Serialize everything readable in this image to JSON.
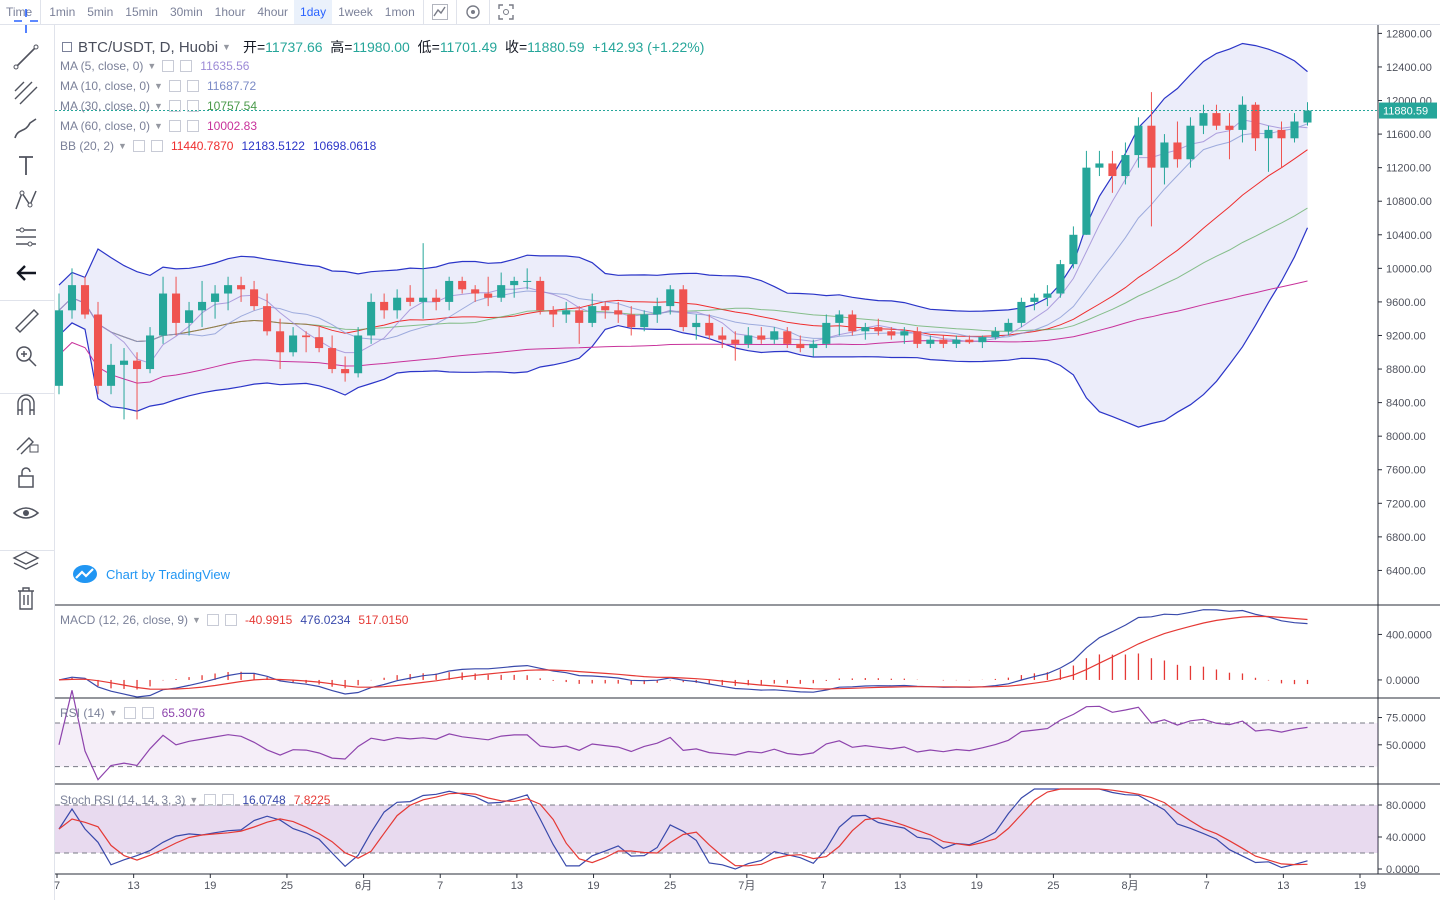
{
  "toolbar": {
    "timeframes": [
      "Time",
      "1min",
      "5min",
      "15min",
      "30min",
      "1hour",
      "4hour",
      "1day",
      "1week",
      "1mon"
    ],
    "active": "1day"
  },
  "title": "BTC/USDT, D, Huobi",
  "ohlc": {
    "open_label": "开",
    "open": "11737.66",
    "high_label": "高",
    "high": "11980.00",
    "low_label": "低",
    "low": "11701.49",
    "close_label": "收",
    "close": "11880.59",
    "change": "+142.93 (+1.22%)"
  },
  "indicators": {
    "ma5": {
      "name": "MA (5, close, 0)",
      "value": "11635.56",
      "color": "#9c8ad6"
    },
    "ma10": {
      "name": "MA (10, close, 0)",
      "value": "11687.72",
      "color": "#8a9ad6"
    },
    "ma30": {
      "name": "MA (30, close, 0)",
      "value": "10757.54",
      "color": "#5aaa5a"
    },
    "ma60": {
      "name": "MA (60, close, 0)",
      "value": "10002.83",
      "color": "#c8329b"
    },
    "bb": {
      "name": "BB (20, 2)",
      "basis": "11440.7870",
      "upper": "12183.5122",
      "lower": "10698.0618",
      "basis_color": "#ef2d2d",
      "band_color": "#2b35c8"
    },
    "macd": {
      "name": "MACD (12, 26, close, 9)",
      "hist": "-40.9915",
      "macd": "476.0234",
      "signal": "517.0150",
      "hist_color": "#e53935",
      "macd_color": "#3949ab",
      "signal_color": "#e53935"
    },
    "rsi": {
      "name": "RSI (14)",
      "value": "65.3076",
      "color": "#8e44ad"
    },
    "stoch": {
      "name": "Stoch RSI (14, 14, 3, 3)",
      "k": "16.0748",
      "d": "7.8225",
      "k_color": "#3949ab",
      "d_color": "#e53935"
    }
  },
  "brand": "Chart by TradingView",
  "last_price": "11880.59",
  "chart_data": {
    "type": "candlestick",
    "price_axis": {
      "min": 6000,
      "max": 12900,
      "ticks": [
        6400,
        6800,
        7200,
        7600,
        8000,
        8400,
        8800,
        9200,
        9600,
        10000,
        10400,
        10800,
        11200,
        11600,
        12000,
        12400,
        12800
      ],
      "tick_labels": [
        "6400.00",
        "6800.00",
        "7200.00",
        "7600.00",
        "8000.00",
        "8400.00",
        "8800.00",
        "9200.00",
        "9600.00",
        "10000.00",
        "10400.00",
        "10800.00",
        "11200.00",
        "11600.00",
        "12000.00",
        "12400.00",
        "12800.00"
      ]
    },
    "x_axis": {
      "labels": [
        "7",
        "13",
        "19",
        "25",
        "6月",
        "7",
        "13",
        "19",
        "25",
        "7月",
        "7",
        "13",
        "19",
        "25",
        "8月",
        "7",
        "13",
        "19"
      ]
    },
    "macd_axis": {
      "ticks": [
        0,
        400
      ],
      "tick_labels": [
        "0.0000",
        "400.0000"
      ]
    },
    "rsi_axis": {
      "ticks": [
        50,
        75
      ],
      "tick_labels": [
        "50.0000",
        "75.0000"
      ],
      "bands": [
        30,
        70
      ]
    },
    "stoch_axis": {
      "ticks": [
        0,
        40,
        80
      ],
      "tick_labels": [
        "0.0000",
        "40.0000",
        "80.0000"
      ],
      "bands": [
        20,
        80
      ]
    },
    "candles": [
      [
        8600,
        9700,
        8500,
        9500
      ],
      [
        9500,
        10000,
        9400,
        9800
      ],
      [
        9800,
        9900,
        9400,
        9450
      ],
      [
        9450,
        9600,
        8500,
        8600
      ],
      [
        8600,
        9100,
        8500,
        8850
      ],
      [
        8850,
        9050,
        8200,
        8900
      ],
      [
        8900,
        9000,
        8200,
        8800
      ],
      [
        8800,
        9300,
        8750,
        9200
      ],
      [
        9200,
        9900,
        9100,
        9700
      ],
      [
        9700,
        9900,
        9200,
        9350
      ],
      [
        9350,
        9600,
        9200,
        9500
      ],
      [
        9500,
        9850,
        9300,
        9600
      ],
      [
        9600,
        9800,
        9400,
        9700
      ],
      [
        9700,
        9900,
        9500,
        9800
      ],
      [
        9800,
        9900,
        9600,
        9750
      ],
      [
        9750,
        9850,
        9500,
        9550
      ],
      [
        9550,
        9700,
        9200,
        9250
      ],
      [
        9250,
        9400,
        8800,
        9000
      ],
      [
        9000,
        9300,
        8950,
        9200
      ],
      [
        9200,
        9250,
        9000,
        9180
      ],
      [
        9180,
        9300,
        9000,
        9050
      ],
      [
        9050,
        9200,
        8750,
        8800
      ],
      [
        8800,
        8950,
        8650,
        8750
      ],
      [
        8750,
        9300,
        8700,
        9200
      ],
      [
        9200,
        9700,
        9100,
        9600
      ],
      [
        9600,
        9700,
        9400,
        9500
      ],
      [
        9500,
        9750,
        9400,
        9650
      ],
      [
        9650,
        9800,
        9550,
        9600
      ],
      [
        9600,
        10300,
        9400,
        9650
      ],
      [
        9650,
        9750,
        9500,
        9600
      ],
      [
        9600,
        9900,
        9500,
        9850
      ],
      [
        9850,
        9900,
        9700,
        9750
      ],
      [
        9750,
        9800,
        9600,
        9700
      ],
      [
        9700,
        9900,
        9550,
        9650
      ],
      [
        9650,
        9950,
        9600,
        9800
      ],
      [
        9800,
        9900,
        9650,
        9850
      ],
      [
        9850,
        10000,
        9750,
        9850
      ],
      [
        9850,
        9900,
        9450,
        9500
      ],
      [
        9500,
        9550,
        9300,
        9450
      ],
      [
        9450,
        9600,
        9350,
        9500
      ],
      [
        9500,
        9550,
        9100,
        9350
      ],
      [
        9350,
        9700,
        9300,
        9550
      ],
      [
        9550,
        9600,
        9400,
        9500
      ],
      [
        9500,
        9600,
        9350,
        9450
      ],
      [
        9450,
        9550,
        9200,
        9300
      ],
      [
        9300,
        9500,
        9250,
        9450
      ],
      [
        9450,
        9650,
        9350,
        9550
      ],
      [
        9550,
        9800,
        9450,
        9750
      ],
      [
        9750,
        9800,
        9250,
        9300
      ],
      [
        9300,
        9450,
        9150,
        9350
      ],
      [
        9350,
        9450,
        9150,
        9200
      ],
      [
        9200,
        9300,
        9050,
        9150
      ],
      [
        9150,
        9250,
        8900,
        9100
      ],
      [
        9100,
        9300,
        9050,
        9200
      ],
      [
        9200,
        9300,
        9100,
        9150
      ],
      [
        9150,
        9300,
        9100,
        9250
      ],
      [
        9250,
        9300,
        9050,
        9100
      ],
      [
        9100,
        9200,
        9000,
        9050
      ],
      [
        9050,
        9150,
        8950,
        9100
      ],
      [
        9100,
        9450,
        9050,
        9350
      ],
      [
        9350,
        9500,
        9200,
        9450
      ],
      [
        9450,
        9500,
        9200,
        9250
      ],
      [
        9250,
        9350,
        9150,
        9300
      ],
      [
        9300,
        9400,
        9200,
        9250
      ],
      [
        9250,
        9300,
        9150,
        9200
      ],
      [
        9200,
        9300,
        9100,
        9250
      ],
      [
        9250,
        9300,
        9050,
        9100
      ],
      [
        9100,
        9200,
        9050,
        9150
      ],
      [
        9150,
        9200,
        9050,
        9100
      ],
      [
        9100,
        9200,
        9050,
        9150
      ],
      [
        9150,
        9200,
        9100,
        9120
      ],
      [
        9120,
        9200,
        9050,
        9180
      ],
      [
        9180,
        9300,
        9150,
        9250
      ],
      [
        9250,
        9400,
        9200,
        9350
      ],
      [
        9350,
        9650,
        9300,
        9600
      ],
      [
        9600,
        9700,
        9500,
        9650
      ],
      [
        9650,
        9800,
        9550,
        9700
      ],
      [
        9700,
        10100,
        9650,
        10050
      ],
      [
        10050,
        10500,
        10000,
        10400
      ],
      [
        10400,
        11400,
        10400,
        11200
      ],
      [
        11200,
        11400,
        11100,
        11250
      ],
      [
        11250,
        11400,
        10900,
        11100
      ],
      [
        11100,
        11500,
        11000,
        11350
      ],
      [
        11350,
        11800,
        11200,
        11700
      ],
      [
        11700,
        12100,
        10500,
        11200
      ],
      [
        11200,
        11600,
        11000,
        11500
      ],
      [
        11500,
        11750,
        11200,
        11300
      ],
      [
        11300,
        11800,
        11200,
        11700
      ],
      [
        11700,
        11950,
        11600,
        11850
      ],
      [
        11850,
        11950,
        11650,
        11700
      ],
      [
        11700,
        11850,
        11300,
        11650
      ],
      [
        11650,
        12050,
        11500,
        11950
      ],
      [
        11950,
        11980,
        11400,
        11550
      ],
      [
        11550,
        11700,
        11150,
        11650
      ],
      [
        11650,
        11750,
        11200,
        11550
      ],
      [
        11550,
        11850,
        11500,
        11750
      ],
      [
        11737.66,
        11980,
        11701.49,
        11880.59
      ]
    ]
  }
}
